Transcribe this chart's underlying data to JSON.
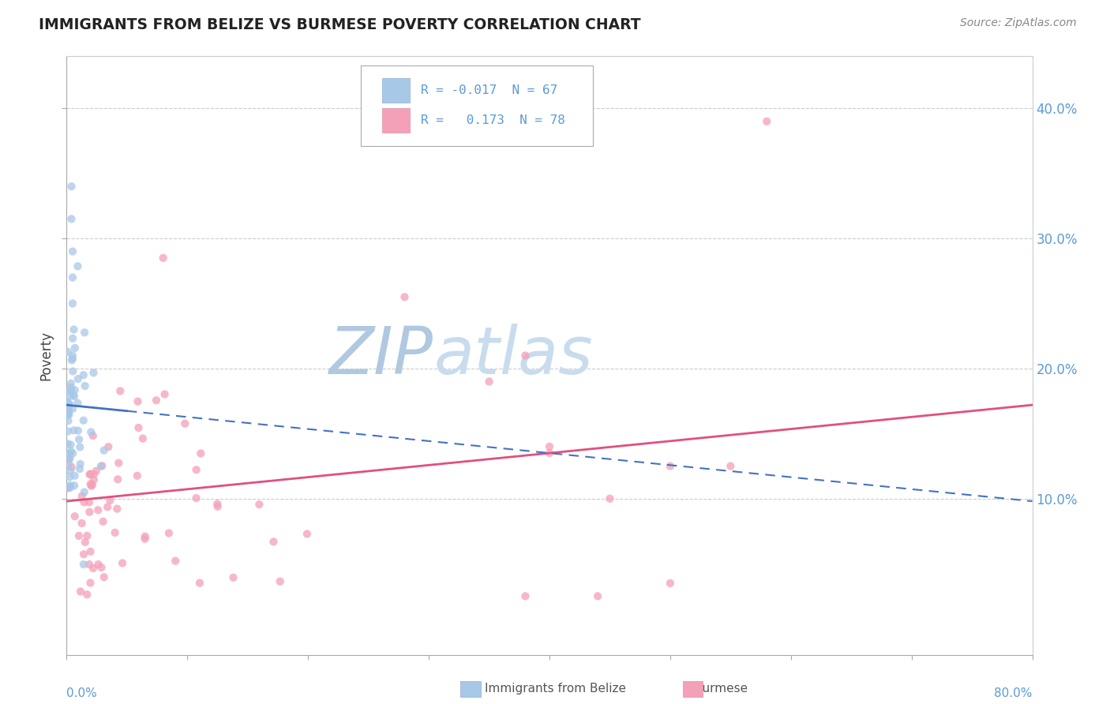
{
  "title": "IMMIGRANTS FROM BELIZE VS BURMESE POVERTY CORRELATION CHART",
  "source": "Source: ZipAtlas.com",
  "ylabel": "Poverty",
  "right_yticklabels": [
    "10.0%",
    "20.0%",
    "30.0%",
    "40.0%"
  ],
  "right_yticks": [
    0.1,
    0.2,
    0.3,
    0.4
  ],
  "xlim": [
    0.0,
    0.8
  ],
  "ylim": [
    -0.02,
    0.44
  ],
  "belize_color": "#a8c8e8",
  "burmese_color": "#f4a0b8",
  "belize_line_color": "#4472c4",
  "burmese_line_color": "#e05080",
  "watermark_zip_color": "#b0c8e0",
  "watermark_atlas_color": "#c8dced",
  "legend_belize_text": "R = -0.017  N = 67",
  "legend_burmese_text": "R =   0.173  N = 78",
  "belize_line_x0": 0.0,
  "belize_line_y0": 0.172,
  "belize_line_x1": 0.8,
  "belize_line_y1": 0.098,
  "burmese_line_x0": 0.0,
  "burmese_line_y0": 0.098,
  "burmese_line_x1": 0.8,
  "burmese_line_y1": 0.172
}
